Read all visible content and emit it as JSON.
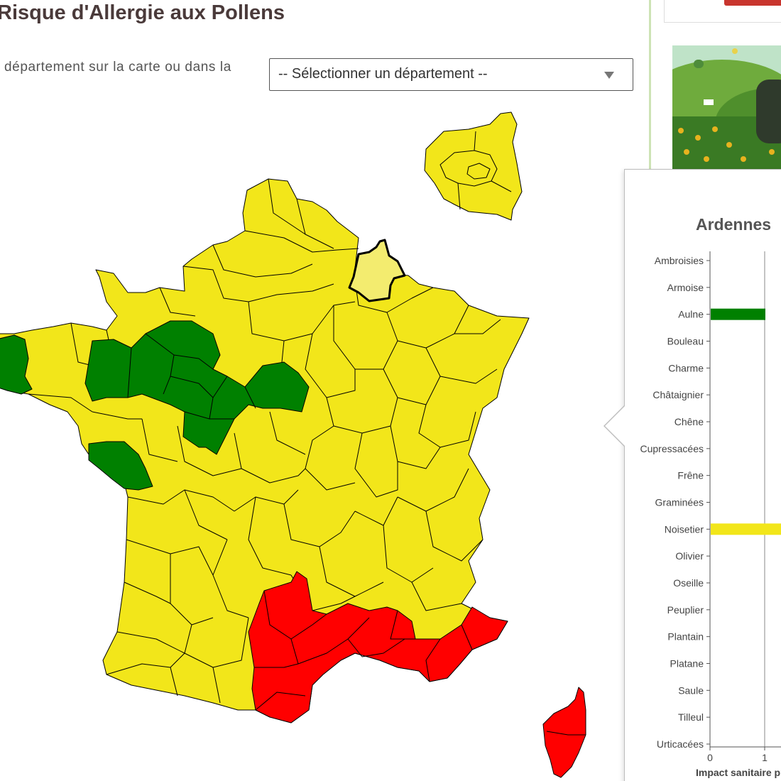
{
  "page": {
    "title": "Risque d'Allergie aux Pollens",
    "hint": "département sur la carte ou dans la",
    "select_placeholder": "-- Sélectionner un département --"
  },
  "map": {
    "colors": {
      "faible": "#008000",
      "moyen": "#f2e61a",
      "eleve": "#ff0000",
      "selected": "#f3ec6f"
    },
    "selected_department": "Ardennes"
  },
  "popup": {
    "title": "Ardennes",
    "chart_data": {
      "type": "bar",
      "orientation": "horizontal",
      "categories": [
        "Ambroisies",
        "Armoise",
        "Aulne",
        "Bouleau",
        "Charme",
        "Châtaignier",
        "Chêne",
        "Cupressacées",
        "Frêne",
        "Graminées",
        "Noisetier",
        "Olivier",
        "Oseille",
        "Peuplier",
        "Plantain",
        "Platane",
        "Saule",
        "Tilleul",
        "Urticacées"
      ],
      "values": [
        0,
        0,
        1,
        0,
        0,
        0,
        0,
        0,
        0,
        0,
        2,
        0,
        0,
        0,
        0,
        0,
        0,
        0,
        0
      ],
      "bar_colors": [
        "",
        "",
        "#008000",
        "",
        "",
        "",
        "",
        "",
        "",
        "",
        "#f2e61a",
        "",
        "",
        "",
        "",
        "",
        "",
        "",
        ""
      ],
      "x_ticks": [
        "0",
        "1"
      ],
      "xlabel": "Impact sanitaire pr",
      "xlim": [
        0,
        5
      ]
    }
  }
}
